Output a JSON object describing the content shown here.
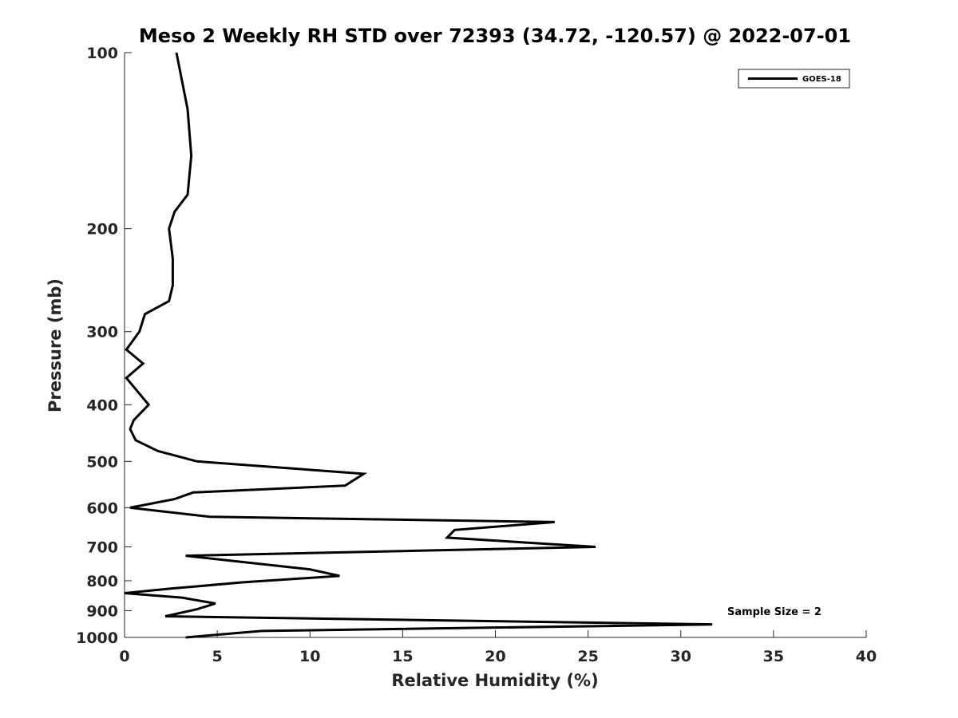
{
  "chart_data": {
    "type": "line",
    "title": "Meso 2 Weekly RH STD over 72393 (34.72, -120.57) @ 2022-07-01",
    "xlabel": "Relative Humidity (%)",
    "ylabel": "Pressure (mb)",
    "xlim": [
      0,
      40
    ],
    "ylim": [
      100,
      1000
    ],
    "y_scale": "log",
    "y_reversed": true,
    "x_ticks": [
      0,
      5,
      10,
      15,
      20,
      25,
      30,
      35,
      40
    ],
    "y_ticks": [
      100,
      200,
      300,
      400,
      500,
      600,
      700,
      800,
      900,
      1000
    ],
    "grid": false,
    "legend_position": "top-right",
    "annotation": "Sample Size = 2",
    "series": [
      {
        "name": "GOES-18",
        "color": "#000000",
        "points": [
          [
            2.8,
            100
          ],
          [
            3.4,
            125
          ],
          [
            3.6,
            150
          ],
          [
            3.4,
            175
          ],
          [
            2.7,
            187
          ],
          [
            2.4,
            200
          ],
          [
            2.6,
            225
          ],
          [
            2.6,
            250
          ],
          [
            2.4,
            266
          ],
          [
            1.1,
            280
          ],
          [
            0.8,
            300
          ],
          [
            0.1,
            322
          ],
          [
            1.0,
            340
          ],
          [
            0.1,
            360
          ],
          [
            1.3,
            400
          ],
          [
            0.5,
            425
          ],
          [
            0.3,
            440
          ],
          [
            0.6,
            460
          ],
          [
            1.8,
            480
          ],
          [
            3.9,
            500
          ],
          [
            12.9,
            525
          ],
          [
            11.9,
            550
          ],
          [
            3.7,
            565
          ],
          [
            2.7,
            580
          ],
          [
            0.3,
            600
          ],
          [
            4.6,
            622
          ],
          [
            23.2,
            635
          ],
          [
            17.8,
            655
          ],
          [
            17.4,
            675
          ],
          [
            25.4,
            700
          ],
          [
            3.3,
            725
          ],
          [
            10.0,
            765
          ],
          [
            11.6,
            785
          ],
          [
            6.4,
            805
          ],
          [
            2.5,
            825
          ],
          [
            0.0,
            840
          ],
          [
            3.1,
            855
          ],
          [
            4.9,
            875
          ],
          [
            3.9,
            895
          ],
          [
            2.2,
            920
          ],
          [
            31.7,
            950
          ],
          [
            7.4,
            975
          ],
          [
            3.3,
            1000
          ]
        ]
      }
    ]
  }
}
